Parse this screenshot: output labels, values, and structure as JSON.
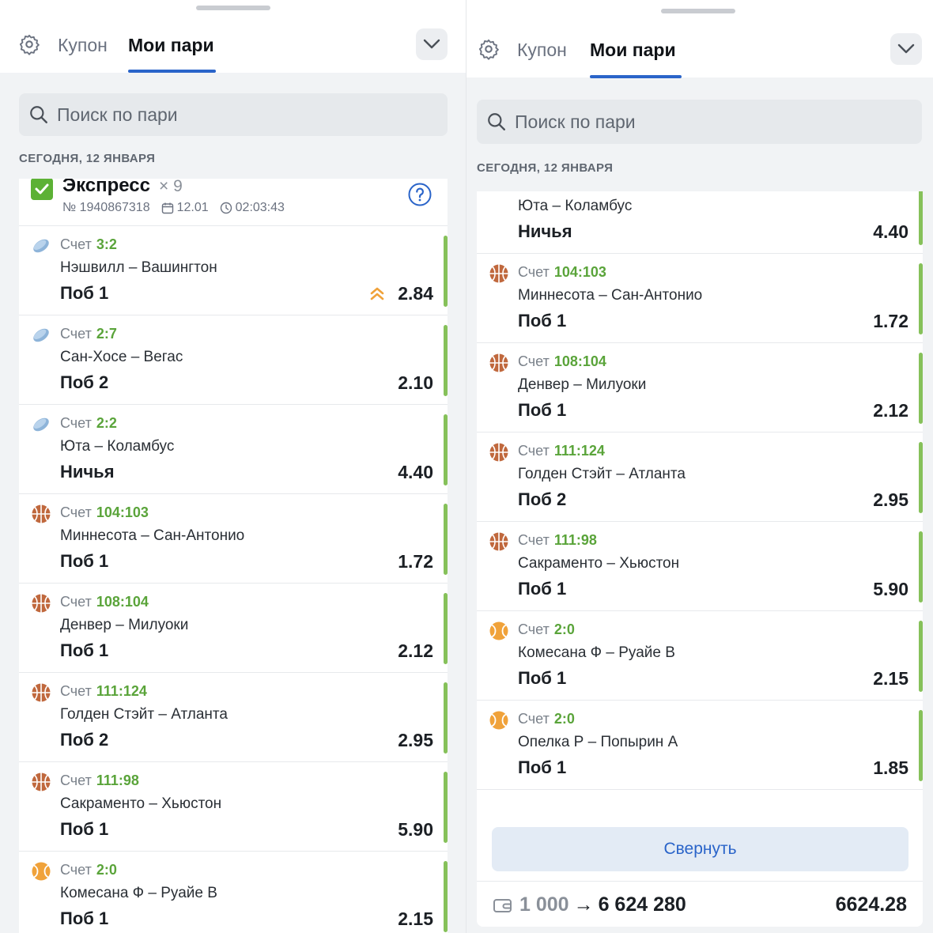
{
  "coupon": {
    "tab_coupon": "Купон",
    "tab_my_bets": "Мои пари",
    "search_placeholder": "Поиск по пари",
    "date_header": "СЕГОДНЯ, 12 ЯНВАРЯ"
  },
  "express": {
    "title": "Экспресс",
    "multiplier": "× 9",
    "number": "№ 1940867318",
    "date": "12.01",
    "time": "02:03:43"
  },
  "score_label": "Счет",
  "bets": [
    {
      "sport": "hockey",
      "score": "3:2",
      "teams": "Нэшвилл – Вашингтон",
      "outcome": "Поб 1",
      "odds": "2.84",
      "boosted": true
    },
    {
      "sport": "hockey",
      "score": "2:7",
      "teams": "Сан-Хосе – Вегас",
      "outcome": "Поб 2",
      "odds": "2.10"
    },
    {
      "sport": "hockey",
      "score": "2:2",
      "teams": "Юта – Коламбус",
      "outcome": "Ничья",
      "odds": "4.40"
    },
    {
      "sport": "basketball",
      "score": "104:103",
      "teams": "Миннесота – Сан-Антонио",
      "outcome": "Поб 1",
      "odds": "1.72"
    },
    {
      "sport": "basketball",
      "score": "108:104",
      "teams": "Денвер – Милуоки",
      "outcome": "Поб 1",
      "odds": "2.12"
    },
    {
      "sport": "basketball",
      "score": "111:124",
      "teams": "Голден Стэйт – Атланта",
      "outcome": "Поб 2",
      "odds": "2.95"
    },
    {
      "sport": "basketball",
      "score": "111:98",
      "teams": "Сакраменто – Хьюстон",
      "outcome": "Поб 1",
      "odds": "5.90"
    },
    {
      "sport": "tennis",
      "score": "2:0",
      "teams": "Комесана Ф – Руайе В",
      "outcome": "Поб 1",
      "odds": "2.15"
    },
    {
      "sport": "tennis",
      "score": "2:0",
      "teams": "Опелка Р – Попырин А",
      "outcome": "Поб 1",
      "odds": "1.85"
    }
  ],
  "collapse_label": "Свернуть",
  "summary": {
    "stake": "1 000",
    "arrow": "→",
    "payout": "6 624 280",
    "total_odds": "6624.28"
  },
  "colors": {
    "accent": "#2a64c9",
    "win": "#86c15a",
    "score": "#5aa43a",
    "boost": "#f0a23a"
  },
  "icons": {
    "hockey": "hockey-puck-icon",
    "basketball": "basketball-icon",
    "tennis": "tennis-ball-icon"
  }
}
